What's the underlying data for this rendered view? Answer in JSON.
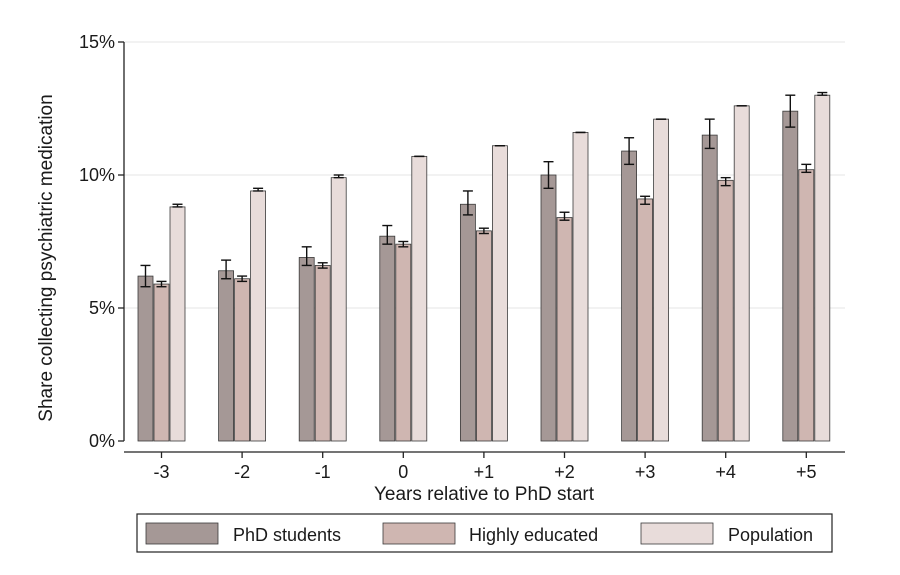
{
  "chart_data": {
    "type": "bar",
    "title": "",
    "xlabel": "Years relative to PhD start",
    "ylabel": "Share collecting psychiatric medication",
    "ylim": [
      0,
      15
    ],
    "yticks": [
      0,
      5,
      10,
      15
    ],
    "ytick_labels": [
      "0%",
      "5%",
      "10%",
      "15%"
    ],
    "grid": true,
    "legend_position": "bottom",
    "categories": [
      "-3",
      "-2",
      "-1",
      "0",
      "+1",
      "+2",
      "+3",
      "+4",
      "+5"
    ],
    "series": [
      {
        "name": "PhD students",
        "color": "#a59896",
        "values": [
          6.2,
          6.4,
          6.9,
          7.7,
          8.9,
          10.0,
          10.9,
          11.5,
          12.4
        ],
        "err_low": [
          5.8,
          6.1,
          6.6,
          7.4,
          8.5,
          9.5,
          10.4,
          11.0,
          11.8
        ],
        "err_high": [
          6.6,
          6.8,
          7.3,
          8.1,
          9.4,
          10.5,
          11.4,
          12.1,
          13.0
        ]
      },
      {
        "name": "Highly educated",
        "color": "#cfb6b1",
        "values": [
          5.9,
          6.1,
          6.6,
          7.4,
          7.9,
          8.4,
          9.1,
          9.8,
          10.2
        ],
        "err_low": [
          5.8,
          6.0,
          6.5,
          7.3,
          7.8,
          8.3,
          8.9,
          9.6,
          10.1
        ],
        "err_high": [
          6.0,
          6.2,
          6.7,
          7.5,
          8.0,
          8.6,
          9.2,
          9.9,
          10.4
        ]
      },
      {
        "name": "Population",
        "color": "#e8dcda",
        "values": [
          8.8,
          9.4,
          9.9,
          10.7,
          11.1,
          11.6,
          12.1,
          12.6,
          13.0
        ],
        "err_low": [
          8.8,
          9.4,
          9.9,
          10.7,
          11.1,
          11.6,
          12.1,
          12.6,
          13.0
        ],
        "err_high": [
          8.9,
          9.5,
          10.0,
          10.7,
          11.1,
          11.6,
          12.1,
          12.6,
          13.1
        ]
      }
    ]
  }
}
